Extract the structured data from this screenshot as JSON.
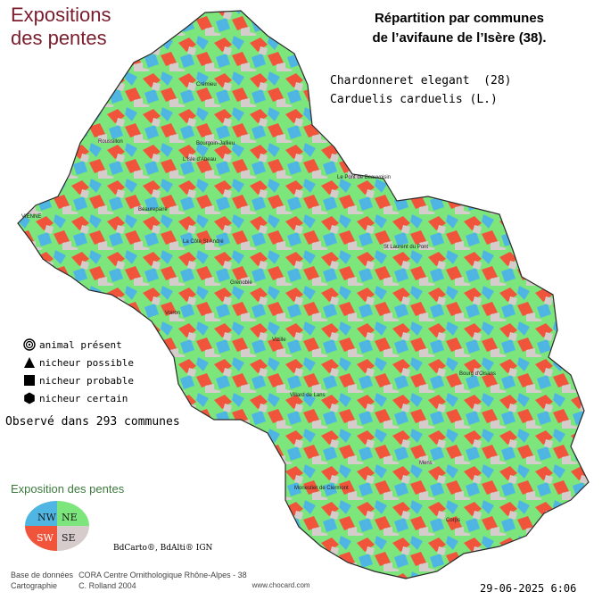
{
  "title": {
    "line1": "Expositions",
    "line2": "des pentes"
  },
  "map_title": {
    "line1": "Répartition par communes",
    "line2": "de l’avifaune de l’Isère (38)."
  },
  "species": {
    "common": "Chardonneret elegant  (28)",
    "latin": "Carduelis carduelis (L.)"
  },
  "legend": [
    {
      "symbol": "target",
      "label": "animal présent"
    },
    {
      "symbol": "triangle",
      "label": "nicheur possible"
    },
    {
      "symbol": "square",
      "label": "nicheur probable"
    },
    {
      "symbol": "hexagon",
      "label": "nicheur certain"
    }
  ],
  "observed": "Observé dans 293 communes",
  "exposure": {
    "title": "Exposition des pentes",
    "quadrants": [
      {
        "label": "NW",
        "color": "#4fb6e3"
      },
      {
        "label": "NE",
        "color": "#7ce67c"
      },
      {
        "label": "SW",
        "color": "#f0553c"
      },
      {
        "label": "SE",
        "color": "#d6cccc"
      }
    ]
  },
  "copyright": "BdCarto®, BdAlti® IGN",
  "credits": [
    {
      "label": "Base de données",
      "value": "CORA Centre Ornithologique Rhône-Alpes - 38"
    },
    {
      "label": "Cartographie",
      "value": "C. Rolland 2004",
      "extra": "www.chocard.com"
    }
  ],
  "date": "29-06-2025 6:06",
  "places": [
    "VIENNE",
    "Le Pont de Beauvoisin",
    "Bourgoin-Jallieu",
    "L'Isle d'Abeau",
    "La Côte St André",
    "Voiron",
    "Grenoble",
    "Vizille",
    "Villard de Lans",
    "Monestier de Clermont",
    "Mens",
    "Corps",
    "Bourg d'Oisans",
    "St Laurent du Pont",
    "Roussillon",
    "Beaurepaire",
    "Crémieu"
  ],
  "chart_data": {
    "type": "map",
    "region": "Isère (38)",
    "communes_observed": 293,
    "categories": [
      "animal présent",
      "nicheur possible",
      "nicheur probable",
      "nicheur certain"
    ]
  }
}
